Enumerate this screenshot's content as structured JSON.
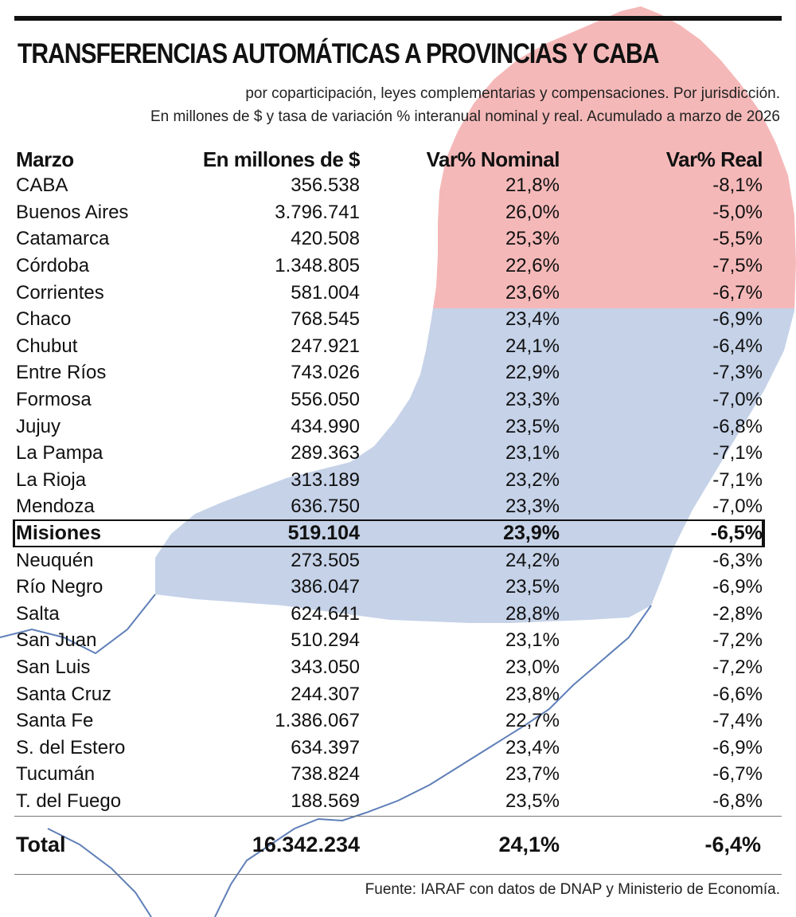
{
  "title": "TRANSFERENCIAS AUTOMÁTICAS A PROVINCIAS Y CABA",
  "subtitle": {
    "line1": "por coparticipación, leyes complementarias y compensaciones. Por jurisdicción.",
    "line2": "En millones de $ y tasa de variación % interanual nominal y real. Acumulado a marzo de 2026"
  },
  "colors": {
    "background_top": "#f5b8b8",
    "background_bottom": "#c5d2e8",
    "outline": "#5f7fb8",
    "text": "#111111"
  },
  "source": "Fuente: IARAF con datos de DNAP y Ministerio de Economía.",
  "chart_data": {
    "type": "table",
    "columns": [
      "Marzo",
      "En millones de $",
      "Var% Nominal",
      "Var% Real"
    ],
    "highlighted_row": "Misiones",
    "rows": [
      {
        "name": "CABA",
        "millones": "356.538",
        "nominal": "21,8%",
        "real": "-8,1%"
      },
      {
        "name": "Buenos Aires",
        "millones": "3.796.741",
        "nominal": "26,0%",
        "real": "-5,0%"
      },
      {
        "name": "Catamarca",
        "millones": "420.508",
        "nominal": "25,3%",
        "real": "-5,5%"
      },
      {
        "name": "Córdoba",
        "millones": "1.348.805",
        "nominal": "22,6%",
        "real": "-7,5%"
      },
      {
        "name": "Corrientes",
        "millones": "581.004",
        "nominal": "23,6%",
        "real": "-6,7%"
      },
      {
        "name": "Chaco",
        "millones": "768.545",
        "nominal": "23,4%",
        "real": "-6,9%"
      },
      {
        "name": "Chubut",
        "millones": "247.921",
        "nominal": "24,1%",
        "real": "-6,4%"
      },
      {
        "name": "Entre Ríos",
        "millones": "743.026",
        "nominal": "22,9%",
        "real": "-7,3%"
      },
      {
        "name": "Formosa",
        "millones": "556.050",
        "nominal": "23,3%",
        "real": "-7,0%"
      },
      {
        "name": "Jujuy",
        "millones": "434.990",
        "nominal": "23,5%",
        "real": "-6,8%"
      },
      {
        "name": "La Pampa",
        "millones": "289.363",
        "nominal": "23,1%",
        "real": "-7,1%"
      },
      {
        "name": "La Rioja",
        "millones": "313.189",
        "nominal": "23,2%",
        "real": "-7,1%"
      },
      {
        "name": "Mendoza",
        "millones": "636.750",
        "nominal": "23,3%",
        "real": "-7,0%"
      },
      {
        "name": "Misiones",
        "millones": "519.104",
        "nominal": "23,9%",
        "real": "-6,5%"
      },
      {
        "name": "Neuquén",
        "millones": "273.505",
        "nominal": "24,2%",
        "real": "-6,3%"
      },
      {
        "name": "Río Negro",
        "millones": "386.047",
        "nominal": "23,5%",
        "real": "-6,9%"
      },
      {
        "name": "Salta",
        "millones": "624.641",
        "nominal": "28,8%",
        "real": "-2,8%"
      },
      {
        "name": "San Juan",
        "millones": "510.294",
        "nominal": "23,1%",
        "real": "-7,2%"
      },
      {
        "name": "San Luis",
        "millones": "343.050",
        "nominal": "23,0%",
        "real": "-7,2%"
      },
      {
        "name": "Santa Cruz",
        "millones": "244.307",
        "nominal": "23,8%",
        "real": "-6,6%"
      },
      {
        "name": "Santa Fe",
        "millones": "1.386.067",
        "nominal": "22,7%",
        "real": "-7,4%"
      },
      {
        "name": "S. del Estero",
        "millones": "634.397",
        "nominal": "23,4%",
        "real": "-6,9%"
      },
      {
        "name": "Tucumán",
        "millones": "738.824",
        "nominal": "23,7%",
        "real": "-6,7%"
      },
      {
        "name": "T. del Fuego",
        "millones": "188.569",
        "nominal": "23,5%",
        "real": "-6,8%"
      }
    ],
    "total": {
      "name": "Total",
      "millones": "16.342.234",
      "nominal": "24,1%",
      "real": "-6,4%"
    }
  }
}
